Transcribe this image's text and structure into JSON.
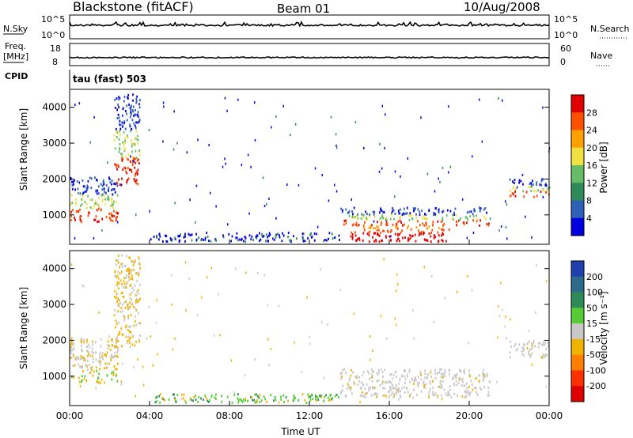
{
  "header": {
    "station": "Blackstone (fitACF)",
    "beam": "Beam 01",
    "date": "10/Aug/2008"
  },
  "top_panels": {
    "nsky_label": "N.Sky",
    "nsky_ticks": [
      "10^5",
      "10^0"
    ],
    "nsearch_label": "N.Search",
    "nsearch_ticks": [
      "10^5",
      "10^0"
    ],
    "freq_label": "Freq.",
    "freq_unit": "[MHz]",
    "freq_ticks": [
      "18",
      "8"
    ],
    "nave_label": "Nave",
    "nave_ticks": [
      "60",
      "0"
    ],
    "cpid_label": "CPID",
    "cpid_value": "tau (fast) 503"
  },
  "chart_data": [
    {
      "type": "heatmap",
      "name": "power-panel",
      "ylabel": "Slant Range [km]",
      "yticks": [
        "4000",
        "3000",
        "2000",
        "1000"
      ],
      "ylim": [
        180,
        4500
      ],
      "xlim": [
        0,
        24
      ],
      "colorbar_label": "Power [dB]",
      "colorbar_ticks": [
        "28",
        "24",
        "20",
        "16",
        "12",
        "8",
        "4"
      ],
      "colors": [
        "#0000e0",
        "#2f60b8",
        "#2e8b57",
        "#66bb66",
        "#f0e040",
        "#ffa000",
        "#ff5000",
        "#e00000"
      ],
      "bands": [
        {
          "x": [
            0,
            2.4
          ],
          "y": [
            800,
            2050
          ],
          "level": "mixed"
        },
        {
          "x": [
            2.2,
            3.5
          ],
          "y": [
            1800,
            4400
          ],
          "level": "mixed"
        },
        {
          "x": [
            4.0,
            13.5
          ],
          "y": [
            250,
            500
          ],
          "level": "low"
        },
        {
          "x": [
            13.5,
            21
          ],
          "y": [
            700,
            1200
          ],
          "level": "mixed"
        },
        {
          "x": [
            14.0,
            19.0
          ],
          "y": [
            250,
            700
          ],
          "level": "high"
        },
        {
          "x": [
            22.0,
            24.0
          ],
          "y": [
            1500,
            2000
          ],
          "level": "mixed"
        }
      ]
    },
    {
      "type": "heatmap",
      "name": "velocity-panel",
      "ylabel": "Slant Range [km]",
      "xlabel": "Time UT",
      "yticks": [
        "4000",
        "3000",
        "2000",
        "1000"
      ],
      "xticks": [
        "00:00",
        "04:00",
        "08:00",
        "12:00",
        "16:00",
        "20:00",
        "00:00"
      ],
      "ylim": [
        180,
        4500
      ],
      "xlim": [
        0,
        24
      ],
      "colorbar_label": "Velocity [m s⁻¹]",
      "colorbar_ticks": [
        "200",
        "100",
        "50",
        "15",
        "-15",
        "-50",
        "-100",
        "-200"
      ],
      "colors": [
        "#2040b0",
        "#2e6b8a",
        "#2e8b57",
        "#55cc33",
        "#c8c8c8",
        "#f0b400",
        "#ff8000",
        "#ff3000",
        "#e00000"
      ],
      "bands": [
        {
          "x": [
            0,
            2.4
          ],
          "y": [
            800,
            2050
          ],
          "vel": "ground-orange"
        },
        {
          "x": [
            2.2,
            3.5
          ],
          "y": [
            1800,
            4400
          ],
          "vel": "orange"
        },
        {
          "x": [
            4.0,
            13.5
          ],
          "y": [
            250,
            500
          ],
          "vel": "green"
        },
        {
          "x": [
            13.5,
            21
          ],
          "y": [
            400,
            1200
          ],
          "vel": "ground"
        },
        {
          "x": [
            22.0,
            24.0
          ],
          "y": [
            1500,
            2000
          ],
          "vel": "ground"
        }
      ]
    }
  ]
}
